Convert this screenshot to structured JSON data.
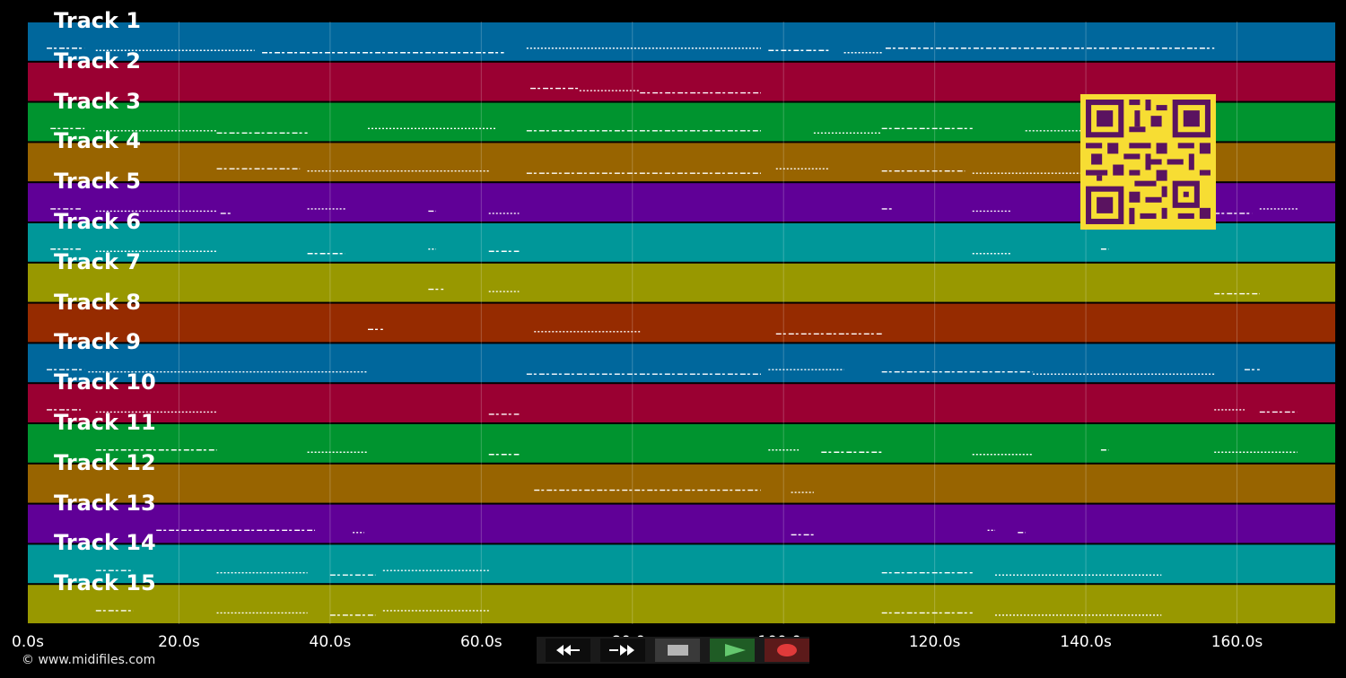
{
  "app": {
    "copyright": "© www.midifiles.com"
  },
  "tracks": [
    {
      "label": "Track 1",
      "color": "#00679c"
    },
    {
      "label": "Track 2",
      "color": "#9a0032"
    },
    {
      "label": "Track 3",
      "color": "#00942f"
    },
    {
      "label": "Track 4",
      "color": "#986400"
    },
    {
      "label": "Track 5",
      "color": "#600097"
    },
    {
      "label": "Track 6",
      "color": "#009799"
    },
    {
      "label": "Track 7",
      "color": "#989800"
    },
    {
      "label": "Track 8",
      "color": "#962b00"
    },
    {
      "label": "Track 9",
      "color": "#00679c"
    },
    {
      "label": "Track 10",
      "color": "#9a0032"
    },
    {
      "label": "Track 11",
      "color": "#00942f"
    },
    {
      "label": "Track 12",
      "color": "#986400"
    },
    {
      "label": "Track 13",
      "color": "#600097"
    },
    {
      "label": "Track 14",
      "color": "#009799"
    },
    {
      "label": "Track 15",
      "color": "#989800"
    }
  ],
  "timeline": {
    "max_seconds": 173,
    "ticks": [
      {
        "value": 0,
        "label": "0.0s"
      },
      {
        "value": 20,
        "label": "20.0s"
      },
      {
        "value": 40,
        "label": "40.0s"
      },
      {
        "value": 60,
        "label": "60.0s"
      },
      {
        "value": 80,
        "label": "80.0s"
      },
      {
        "value": 100,
        "label": "100.0s"
      },
      {
        "value": 120,
        "label": "120.0s"
      },
      {
        "value": 140,
        "label": "140.0s"
      },
      {
        "value": 160,
        "label": "160.0s"
      }
    ]
  },
  "notes": [
    {
      "track": 0,
      "segments": [
        [
          2.5,
          7.5
        ],
        [
          9,
          30
        ],
        [
          31,
          63
        ],
        [
          66,
          97
        ],
        [
          98,
          106
        ],
        [
          108,
          113
        ],
        [
          113.5,
          157
        ]
      ]
    },
    {
      "track": 1,
      "segments": [
        [
          66.5,
          73
        ],
        [
          73,
          81
        ],
        [
          81,
          97
        ]
      ]
    },
    {
      "track": 2,
      "segments": [
        [
          3,
          7.5
        ],
        [
          9,
          25
        ],
        [
          25,
          37
        ],
        [
          45,
          62
        ],
        [
          66,
          97
        ],
        [
          104,
          113
        ],
        [
          113,
          125
        ],
        [
          132,
          140
        ]
      ]
    },
    {
      "track": 3,
      "segments": [
        [
          25,
          36
        ],
        [
          37,
          61
        ],
        [
          66,
          97
        ],
        [
          99,
          106
        ],
        [
          113,
          124
        ],
        [
          125,
          140
        ]
      ]
    },
    {
      "track": 4,
      "segments": [
        [
          3,
          7
        ],
        [
          9,
          25
        ],
        [
          25.5,
          27
        ],
        [
          37,
          42
        ],
        [
          53,
          54
        ],
        [
          61,
          65
        ],
        [
          113,
          114.5
        ],
        [
          125,
          130
        ],
        [
          157,
          162
        ],
        [
          163,
          168
        ]
      ]
    },
    {
      "track": 5,
      "segments": [
        [
          3,
          7
        ],
        [
          9,
          25
        ],
        [
          37,
          42
        ],
        [
          53,
          54
        ],
        [
          61,
          65
        ],
        [
          125,
          130
        ],
        [
          142,
          143
        ]
      ]
    },
    {
      "track": 6,
      "segments": [
        [
          53,
          55
        ],
        [
          61,
          65
        ],
        [
          157,
          163
        ]
      ]
    },
    {
      "track": 7,
      "segments": [
        [
          45,
          47
        ],
        [
          67,
          81
        ],
        [
          99,
          113
        ]
      ]
    },
    {
      "track": 8,
      "segments": [
        [
          2.5,
          7.5
        ],
        [
          8,
          45
        ],
        [
          66,
          97
        ],
        [
          98,
          108
        ],
        [
          113,
          133
        ],
        [
          133,
          157
        ],
        [
          161,
          163
        ]
      ]
    },
    {
      "track": 9,
      "segments": [
        [
          2.5,
          7
        ],
        [
          9,
          25
        ],
        [
          61,
          65
        ],
        [
          157,
          161
        ],
        [
          163,
          168
        ]
      ]
    },
    {
      "track": 10,
      "segments": [
        [
          9,
          25
        ],
        [
          37,
          45
        ],
        [
          61,
          65
        ],
        [
          98,
          102
        ],
        [
          105,
          113
        ],
        [
          125,
          133
        ],
        [
          142,
          143
        ],
        [
          157,
          168
        ]
      ]
    },
    {
      "track": 11,
      "segments": [
        [
          67,
          97
        ],
        [
          101,
          104
        ]
      ]
    },
    {
      "track": 12,
      "segments": [
        [
          17,
          38
        ],
        [
          43,
          44.5
        ],
        [
          101,
          104
        ],
        [
          127,
          128
        ],
        [
          131,
          132
        ]
      ]
    },
    {
      "track": 13,
      "segments": [
        [
          9,
          14
        ],
        [
          25,
          37
        ],
        [
          40,
          46
        ],
        [
          47,
          61
        ],
        [
          113,
          125
        ],
        [
          128,
          150
        ]
      ]
    },
    {
      "track": 14,
      "segments": [
        [
          9,
          14
        ],
        [
          25,
          37
        ],
        [
          40,
          46
        ],
        [
          47,
          61
        ],
        [
          113,
          125
        ],
        [
          128,
          150
        ]
      ]
    }
  ],
  "transport": {
    "rewind_icon": "rewind-icon",
    "forward_icon": "fast-forward-icon",
    "stop_icon": "stop-icon",
    "play_icon": "play-icon",
    "record_icon": "record-icon"
  }
}
